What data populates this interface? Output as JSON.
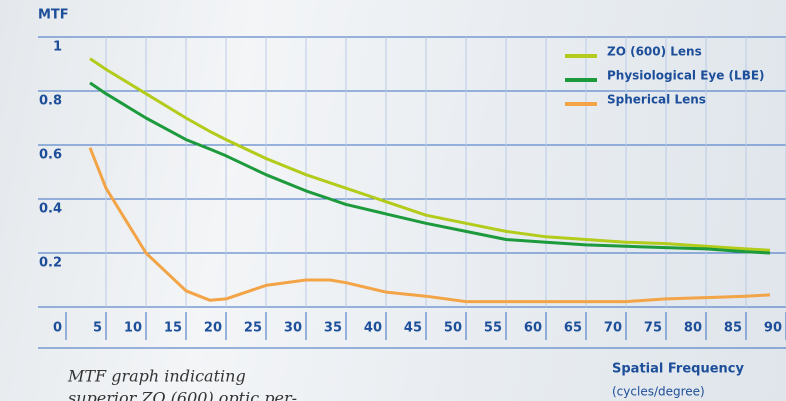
{
  "chart_data": {
    "type": "line",
    "ylabel": "MTF",
    "xlabel": "Spatial Frequency",
    "xlabel_unit": "(cycles/degree)",
    "caption": [
      "MTF graph indicating",
      "superior ZO (600) optic per-"
    ],
    "x": [
      3,
      5,
      10,
      15,
      18,
      20,
      25,
      30,
      33,
      35,
      40,
      45,
      50,
      55,
      60,
      65,
      70,
      75,
      80,
      85,
      88
    ],
    "series": [
      {
        "name": "ZO (600) Lens",
        "color": "#b3cb1a",
        "values": [
          0.92,
          0.88,
          0.79,
          0.7,
          0.65,
          0.62,
          0.55,
          0.49,
          0.46,
          0.44,
          0.39,
          0.34,
          0.31,
          0.28,
          0.26,
          0.25,
          0.24,
          0.235,
          0.225,
          0.215,
          0.21
        ]
      },
      {
        "name": "Physiological Eye (LBE)",
        "color": "#1c9a3c",
        "values": [
          0.83,
          0.79,
          0.7,
          0.62,
          0.585,
          0.56,
          0.49,
          0.43,
          0.4,
          0.38,
          0.345,
          0.31,
          0.28,
          0.25,
          0.24,
          0.23,
          0.225,
          0.22,
          0.215,
          0.205,
          0.2
        ]
      },
      {
        "name": "Spherical Lens",
        "color": "#f2a446",
        "values": [
          0.59,
          0.44,
          0.2,
          0.06,
          0.025,
          0.03,
          0.08,
          0.1,
          0.1,
          0.09,
          0.055,
          0.04,
          0.02,
          0.02,
          0.02,
          0.02,
          0.02,
          0.03,
          0.035,
          0.04,
          0.045
        ]
      }
    ],
    "xlim": [
      0,
      90
    ],
    "ylim": [
      0,
      1
    ],
    "xticks": [
      0,
      5,
      10,
      15,
      20,
      25,
      30,
      35,
      40,
      45,
      50,
      55,
      60,
      65,
      70,
      75,
      80,
      85,
      90
    ],
    "yticks": [
      1,
      0.8,
      0.6,
      0.4,
      0.2
    ],
    "grid": true,
    "legend": "top-right"
  }
}
